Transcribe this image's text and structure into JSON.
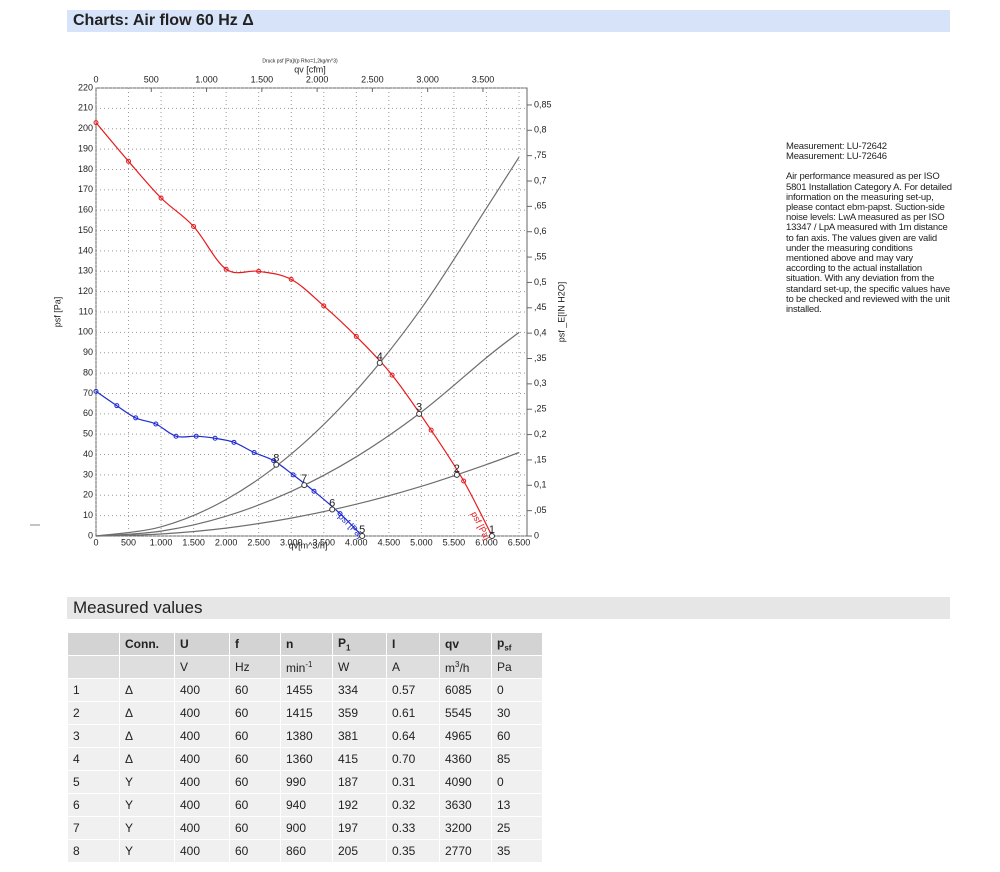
{
  "header": {
    "title": "Charts: Air flow 60 Hz Δ"
  },
  "chart_data": {
    "type": "line",
    "title": "Druck psf [Pa]/(p Rho=1,2kg/m^3)",
    "x_label": "qv[m^3/h]",
    "x2_label": "qv [cfm]",
    "y_label": "psf [Pa]",
    "y2_label": "psf _E[IN H2O]",
    "xlim": [
      0,
      6500
    ],
    "xticks": [
      0,
      500,
      {
        "value": 1000,
        "label": "1.000"
      },
      {
        "value": 1500,
        "label": "1.500"
      },
      {
        "value": 2000,
        "label": "2.000"
      },
      {
        "value": 2500,
        "label": "2.500"
      },
      {
        "value": 3000,
        "label": "3.000"
      },
      {
        "value": 3500,
        "label": "3.500"
      },
      {
        "value": 4000,
        "label": "4.000"
      },
      {
        "value": 4500,
        "label": "4.500"
      },
      {
        "value": 5000,
        "label": "5.000"
      },
      {
        "value": 5500,
        "label": "5.500"
      },
      {
        "value": 6000,
        "label": "6.000"
      },
      {
        "value": 6500,
        "label": "6.500"
      }
    ],
    "x2lim": [
      0,
      3826
    ],
    "x2ticks": [
      0,
      500,
      {
        "value": 1000,
        "label": "1.000"
      },
      {
        "value": 1500,
        "label": "1.500"
      },
      {
        "value": 2000,
        "label": "2.000"
      },
      {
        "value": 2500,
        "label": "2.500"
      },
      {
        "value": 3000,
        "label": "3.000"
      },
      {
        "value": 3500,
        "label": "3.500"
      }
    ],
    "ylim": [
      0,
      220
    ],
    "yticks": [
      0,
      10,
      20,
      30,
      40,
      50,
      60,
      70,
      80,
      90,
      100,
      110,
      120,
      130,
      140,
      150,
      160,
      170,
      180,
      190,
      200,
      210,
      220
    ],
    "y2lim": [
      0,
      0.8834
    ],
    "y2ticks": [
      0,
      {
        "value": 0.05,
        "label": ",05"
      },
      {
        "value": 0.1,
        "label": "0,1"
      },
      {
        "value": 0.15,
        "label": ",15"
      },
      {
        "value": 0.2,
        "label": "0,2"
      },
      {
        "value": 0.25,
        "label": ",25"
      },
      {
        "value": 0.3,
        "label": "0,3"
      },
      {
        "value": 0.35,
        "label": ",35"
      },
      {
        "value": 0.4,
        "label": "0,4"
      },
      {
        "value": 0.45,
        "label": ",45"
      },
      {
        "value": 0.5,
        "label": "0,5"
      },
      {
        "value": 0.55,
        "label": ",55"
      },
      {
        "value": 0.6,
        "label": "0,6"
      },
      {
        "value": 0.65,
        "label": ",65"
      },
      {
        "value": 0.7,
        "label": "0,7"
      },
      {
        "value": 0.75,
        "label": ",75"
      },
      {
        "value": 0.8,
        "label": "0,8"
      },
      {
        "value": 0.85,
        "label": "0,85"
      }
    ],
    "grid": true,
    "series": [
      {
        "name": "psf [Pa]",
        "color": "#e8191c",
        "markers": true,
        "x": [
          0,
          500,
          1000,
          1500,
          2000,
          2500,
          3000,
          3500,
          4000,
          4550,
          5150,
          5650,
          6085
        ],
        "values": [
          203,
          184,
          166,
          152,
          131,
          130,
          126,
          113,
          98,
          79,
          52,
          27,
          0
        ]
      },
      {
        "name": "psf [Pa]",
        "color": "#1f2bd1",
        "markers": true,
        "x": [
          0,
          320,
          610,
          920,
          1230,
          1540,
          1830,
          2120,
          2430,
          2730,
          3030,
          3350,
          3750,
          4090
        ],
        "values": [
          71,
          64,
          58,
          55,
          49,
          49,
          48,
          46,
          41,
          37,
          30,
          22,
          11,
          0
        ]
      },
      {
        "color": "#6e6e6e",
        "markers": false,
        "x": [
          0,
          1000,
          2000,
          3000,
          4000,
          5000,
          6000,
          6500
        ],
        "values": [
          0,
          4.5,
          17.9,
          40.2,
          71.5,
          111.8,
          161,
          186
        ]
      },
      {
        "color": "#6e6e6e",
        "markers": false,
        "x": [
          0,
          1000,
          2000,
          3000,
          4000,
          5000,
          6000,
          6500
        ],
        "values": [
          0,
          2.4,
          9.7,
          21.9,
          38.9,
          60.9,
          87.6,
          100
        ]
      },
      {
        "color": "#6e6e6e",
        "markers": false,
        "x": [
          0,
          1000,
          2000,
          3000,
          4000,
          5000,
          6000,
          6500
        ],
        "values": [
          0,
          1,
          3.9,
          8.8,
          15.6,
          24.4,
          35.1,
          41
        ]
      }
    ],
    "operating_points": {
      "labels": [
        "1",
        "2",
        "3",
        "4",
        "5",
        "6",
        "7",
        "8"
      ],
      "x": [
        6085,
        5545,
        4965,
        4360,
        4090,
        3630,
        3200,
        2770
      ],
      "values": [
        0,
        30,
        60,
        85,
        0,
        13,
        25,
        35
      ]
    }
  },
  "notes": {
    "measurements": [
      "Measurement: LU-72642",
      "Measurement: LU-72646"
    ],
    "text": "Air performance measured as per ISO 5801 Installation Category A. For detailed information on the measuring set-up, please contact ebm-papst. Suction-side noise levels: LwA measured as per ISO 13347 / LpA measured with 1m distance to fan axis. The values given are valid under the measuring conditions mentioned above and may vary according to the actual installation situation. With any deviation from the standard set-up, the specific values have to be checked and reviewed with the unit installed."
  },
  "measured": {
    "title": "Measured values",
    "headers": [
      {
        "text": "Conn."
      },
      {
        "text": "U"
      },
      {
        "text": "f"
      },
      {
        "text": "n"
      },
      {
        "text": "P",
        "sub": "1"
      },
      {
        "text": "I"
      },
      {
        "text": "qv"
      },
      {
        "text": "p",
        "sub": "sf"
      }
    ],
    "units": [
      {
        "text": "V"
      },
      {
        "text": "Hz"
      },
      {
        "text": "min",
        "sup": "-1"
      },
      {
        "text": "W"
      },
      {
        "text": "A"
      },
      {
        "text": "m",
        "sup": "3",
        "after": "/h"
      },
      {
        "text": "Pa"
      }
    ],
    "rows": [
      [
        "1",
        "Δ",
        "400",
        "60",
        "1455",
        "334",
        "0.57",
        "6085",
        "0"
      ],
      [
        "2",
        "Δ",
        "400",
        "60",
        "1415",
        "359",
        "0.61",
        "5545",
        "30"
      ],
      [
        "3",
        "Δ",
        "400",
        "60",
        "1380",
        "381",
        "0.64",
        "4965",
        "60"
      ],
      [
        "4",
        "Δ",
        "400",
        "60",
        "1360",
        "415",
        "0.70",
        "4360",
        "85"
      ],
      [
        "5",
        "Y",
        "400",
        "60",
        "990",
        "187",
        "0.31",
        "4090",
        "0"
      ],
      [
        "6",
        "Y",
        "400",
        "60",
        "940",
        "192",
        "0.32",
        "3630",
        "13"
      ],
      [
        "7",
        "Y",
        "400",
        "60",
        "900",
        "197",
        "0.33",
        "3200",
        "25"
      ],
      [
        "8",
        "Y",
        "400",
        "60",
        "860",
        "205",
        "0.35",
        "2770",
        "35"
      ]
    ]
  }
}
